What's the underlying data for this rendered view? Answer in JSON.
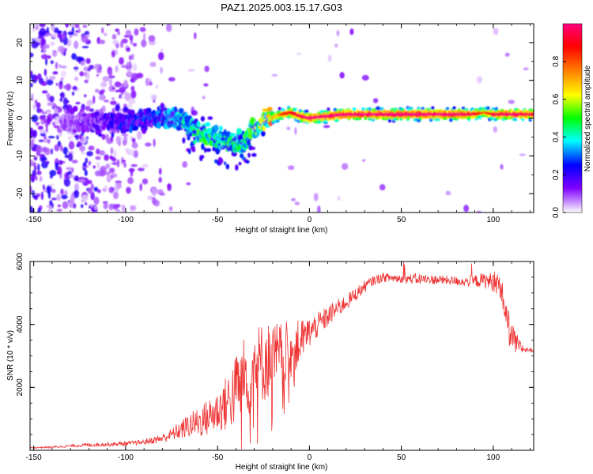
{
  "title": "PAZ1.2025.003.15.17.G03",
  "chart_data": [
    {
      "type": "heatmap",
      "xlabel": "Height of straight line (km)",
      "ylabel": "Frequency (Hz)",
      "xlim": [
        -152,
        122
      ],
      "ylim": [
        -25,
        25
      ],
      "xticks": [
        -150,
        -100,
        -50,
        0,
        50,
        100
      ],
      "yticks": [
        -20,
        -10,
        0,
        10,
        20
      ],
      "grid": false,
      "colorbar": {
        "label": "Normalized spectral amplitude",
        "range": [
          0,
          1
        ],
        "ticks": [
          "0.0",
          "0.2",
          "0.4",
          "0.6",
          "0.8"
        ],
        "colors": [
          "#ffffff",
          "#cc99ff",
          "#7f00ff",
          "#0000ff",
          "#00ffff",
          "#00ff00",
          "#ffff00",
          "#ff8000",
          "#ff0000",
          "#ff0080"
        ]
      },
      "ridge": {
        "x": [
          -130,
          -120,
          -110,
          -100,
          -90,
          -80,
          -70,
          -65,
          -60,
          -55,
          -50,
          -45,
          -40,
          -35,
          -30,
          -25,
          -20,
          -15,
          -10,
          -5,
          0,
          10,
          20,
          30,
          40,
          50,
          60,
          70,
          80,
          90,
          95,
          100,
          110,
          120
        ],
        "frequency": [
          -1,
          -1,
          -1,
          -1,
          -0.5,
          0,
          0,
          -2,
          -4,
          -5,
          -5,
          -6,
          -7,
          -6,
          -3,
          -1,
          0,
          1,
          1.5,
          0.5,
          0,
          0.5,
          1,
          1,
          1,
          1,
          1,
          1,
          1,
          1,
          1.5,
          1,
          1,
          1
        ],
        "amplitude": [
          0.1,
          0.15,
          0.2,
          0.25,
          0.25,
          0.3,
          0.35,
          0.45,
          0.45,
          0.45,
          0.4,
          0.45,
          0.4,
          0.45,
          0.5,
          0.6,
          0.75,
          0.8,
          0.85,
          0.9,
          0.95,
          0.98,
          0.98,
          0.95,
          0.98,
          0.98,
          0.98,
          0.98,
          0.95,
          0.9,
          0.7,
          0.9,
          0.95,
          0.9
        ]
      }
    },
    {
      "type": "line",
      "xlabel": "Height of straight line (km)",
      "ylabel": "SNR (10 * v/v)",
      "xlim": [
        -152,
        122
      ],
      "ylim": [
        0,
        6000
      ],
      "xticks": [
        -150,
        -100,
        -50,
        0,
        50,
        100
      ],
      "yticks": [
        2000,
        4000,
        6000
      ],
      "grid": false,
      "series": [
        {
          "color": "#ee3333",
          "x": [
            -152,
            -140,
            -130,
            -120,
            -110,
            -100,
            -90,
            -80,
            -75,
            -70,
            -65,
            -60,
            -55,
            -50,
            -45,
            -40,
            -35,
            -30,
            -25,
            -20,
            -15,
            -10,
            -5,
            0,
            5,
            10,
            15,
            20,
            25,
            30,
            35,
            40,
            45,
            50,
            55,
            60,
            65,
            70,
            75,
            80,
            85,
            90,
            95,
            100,
            102,
            104,
            106,
            108,
            110,
            112,
            115,
            118,
            122
          ],
          "y": [
            80,
            100,
            140,
            170,
            190,
            210,
            260,
            380,
            500,
            650,
            800,
            900,
            1050,
            1250,
            1500,
            1900,
            2400,
            2700,
            2800,
            2900,
            3000,
            3200,
            3450,
            3750,
            4000,
            4250,
            4500,
            4700,
            4950,
            5200,
            5400,
            5500,
            5480,
            5460,
            5450,
            5440,
            5430,
            5420,
            5400,
            5380,
            5360,
            5380,
            5400,
            5350,
            5300,
            5200,
            4600,
            4000,
            3600,
            3400,
            3250,
            3200,
            3180
          ],
          "noise": [
            20,
            30,
            40,
            60,
            60,
            70,
            80,
            150,
            200,
            300,
            400,
            500,
            600,
            700,
            900,
            1200,
            1300,
            1300,
            1300,
            1200,
            1100,
            900,
            700,
            500,
            400,
            350,
            300,
            250,
            220,
            200,
            150,
            150,
            150,
            160,
            160,
            180,
            160,
            150,
            150,
            150,
            160,
            200,
            250,
            300,
            350,
            400,
            500,
            600,
            500,
            400,
            200,
            80,
            60
          ]
        }
      ]
    }
  ]
}
